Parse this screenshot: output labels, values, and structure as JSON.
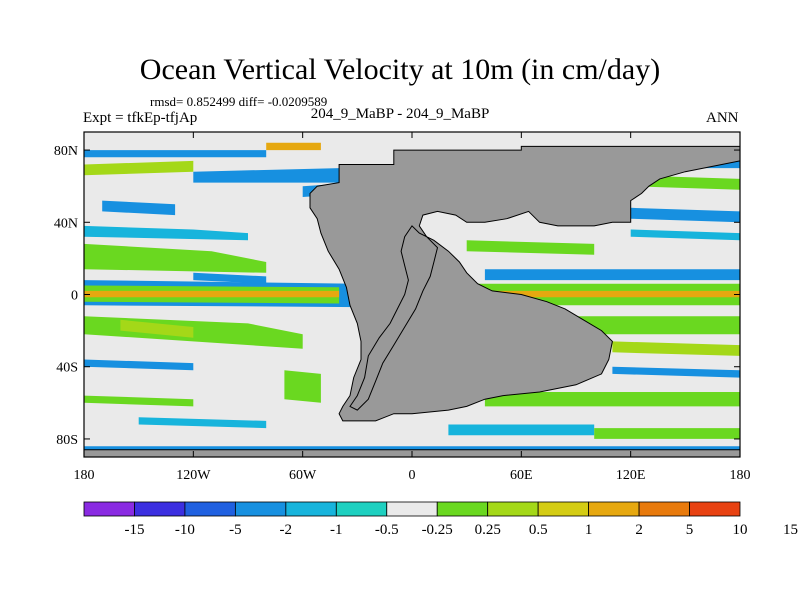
{
  "title": "Ocean Vertical Velocity at 10m (in cm/day)",
  "stats_line": "rmsd= 0.852499 diff= -0.0209589",
  "experiment": "Expt = tfkEp-tfjAp",
  "cases": "204_9_MaBP - 204_9_MaBP",
  "season": "ANN",
  "map": {
    "lon_range": [
      -180,
      180
    ],
    "lat_range": [
      -90,
      90
    ],
    "x_ticks": [
      {
        "value": -180,
        "label": "180"
      },
      {
        "value": -120,
        "label": "120W"
      },
      {
        "value": -60,
        "label": "60W"
      },
      {
        "value": 0,
        "label": "0"
      },
      {
        "value": 60,
        "label": "60E"
      },
      {
        "value": 120,
        "label": "120E"
      },
      {
        "value": 180,
        "label": "180"
      }
    ],
    "y_ticks": [
      {
        "value": 80,
        "label": "80N"
      },
      {
        "value": 40,
        "label": "40N"
      },
      {
        "value": 0,
        "label": "0"
      },
      {
        "value": -40,
        "label": "40S"
      },
      {
        "value": -80,
        "label": "80S"
      }
    ],
    "land_color": "#999999",
    "ocean_background_color": "#eaeaea"
  },
  "colorbar": {
    "colors": [
      "#8a2be2",
      "#3c2fe0",
      "#2060e0",
      "#1790e0",
      "#17b4dc",
      "#1ed0c0",
      "#eaeaea",
      "#6ad820",
      "#a4d818",
      "#d4cc14",
      "#e6a810",
      "#e87a0c",
      "#e84212"
    ],
    "labels": [
      "-15",
      "-10",
      "-5",
      "-2",
      "-1",
      "-0.5",
      "-0.25",
      "0.25",
      "0.5",
      "1",
      "2",
      "5",
      "10",
      "15"
    ]
  }
}
